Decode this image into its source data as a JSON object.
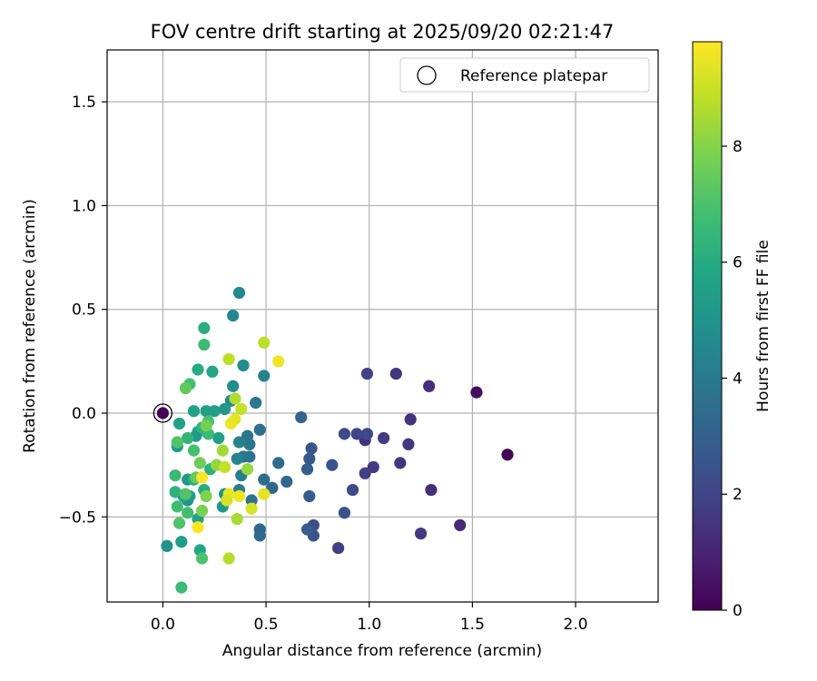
{
  "chart_data": {
    "type": "scatter",
    "title": "FOV centre drift starting at 2025/09/20 02:21:47",
    "xlabel": "Angular distance from reference (arcmin)",
    "ylabel": "Rotation from reference (arcmin)",
    "xlim": [
      -0.27,
      2.4
    ],
    "ylim": [
      -0.91,
      1.75
    ],
    "xticks": [
      0.0,
      0.5,
      1.0,
      1.5,
      2.0
    ],
    "xtick_labels": [
      "0.0",
      "0.5",
      "1.0",
      "1.5",
      "2.0"
    ],
    "yticks": [
      -0.5,
      0.0,
      0.5,
      1.0,
      1.5
    ],
    "ytick_labels": [
      "−0.5",
      "0.0",
      "0.5",
      "1.0",
      "1.5"
    ],
    "grid": true,
    "legend": {
      "position": "top-right",
      "label": "Reference platepar"
    },
    "reference_point": {
      "x": 0.0,
      "y": 0.0,
      "hours": 0.0
    },
    "colorbar": {
      "label": "Hours from first FF file",
      "range": [
        0,
        9.8
      ],
      "ticks": [
        0,
        2,
        4,
        6,
        8
      ],
      "tick_labels": [
        "0",
        "2",
        "4",
        "6",
        "8"
      ],
      "colormap": "viridis"
    },
    "points": [
      {
        "x": 1.67,
        "y": -0.2,
        "h": 0.1
      },
      {
        "x": 1.52,
        "y": 0.1,
        "h": 0.3
      },
      {
        "x": 1.29,
        "y": 0.13,
        "h": 1.3
      },
      {
        "x": 1.13,
        "y": 0.19,
        "h": 1.5
      },
      {
        "x": 0.99,
        "y": 0.19,
        "h": 1.9
      },
      {
        "x": 1.2,
        "y": -0.03,
        "h": 1.4
      },
      {
        "x": 1.44,
        "y": -0.54,
        "h": 1.2
      },
      {
        "x": 1.3,
        "y": -0.37,
        "h": 1.3
      },
      {
        "x": 1.25,
        "y": -0.58,
        "h": 1.6
      },
      {
        "x": 1.19,
        "y": -0.15,
        "h": 1.6
      },
      {
        "x": 1.15,
        "y": -0.24,
        "h": 1.5
      },
      {
        "x": 1.07,
        "y": -0.12,
        "h": 1.7
      },
      {
        "x": 1.02,
        "y": -0.26,
        "h": 1.6
      },
      {
        "x": 0.98,
        "y": -0.29,
        "h": 1.8
      },
      {
        "x": 0.98,
        "y": -0.13,
        "h": 1.4
      },
      {
        "x": 0.99,
        "y": -0.1,
        "h": 2.1
      },
      {
        "x": 0.94,
        "y": -0.1,
        "h": 2.0
      },
      {
        "x": 0.88,
        "y": -0.1,
        "h": 2.2
      },
      {
        "x": 0.92,
        "y": -0.37,
        "h": 2.2
      },
      {
        "x": 0.88,
        "y": -0.48,
        "h": 2.4
      },
      {
        "x": 0.85,
        "y": -0.65,
        "h": 1.8
      },
      {
        "x": 0.82,
        "y": -0.25,
        "h": 2.5
      },
      {
        "x": 0.73,
        "y": -0.54,
        "h": 2.3
      },
      {
        "x": 0.73,
        "y": -0.59,
        "h": 2.5
      },
      {
        "x": 0.72,
        "y": -0.17,
        "h": 2.6
      },
      {
        "x": 0.71,
        "y": -0.22,
        "h": 2.7
      },
      {
        "x": 0.71,
        "y": -0.4,
        "h": 2.8
      },
      {
        "x": 0.7,
        "y": -0.56,
        "h": 2.8
      },
      {
        "x": 0.7,
        "y": -0.27,
        "h": 2.9
      },
      {
        "x": 0.67,
        "y": -0.02,
        "h": 3.0
      },
      {
        "x": 0.6,
        "y": -0.33,
        "h": 3.2
      },
      {
        "x": 0.56,
        "y": -0.24,
        "h": 3.4
      },
      {
        "x": 0.53,
        "y": -0.36,
        "h": 3.3
      },
      {
        "x": 0.49,
        "y": -0.32,
        "h": 3.5
      },
      {
        "x": 0.47,
        "y": -0.56,
        "h": 3.2
      },
      {
        "x": 0.47,
        "y": -0.59,
        "h": 3.3
      },
      {
        "x": 0.47,
        "y": -0.08,
        "h": 3.6
      },
      {
        "x": 0.45,
        "y": 0.05,
        "h": 3.9
      },
      {
        "x": 0.49,
        "y": 0.18,
        "h": 4.3
      },
      {
        "x": 0.43,
        "y": -0.42,
        "h": 3.6
      },
      {
        "x": 0.42,
        "y": -0.21,
        "h": 3.7
      },
      {
        "x": 0.41,
        "y": -0.11,
        "h": 3.8
      },
      {
        "x": 0.42,
        "y": -0.15,
        "h": 3.9
      },
      {
        "x": 0.39,
        "y": -0.21,
        "h": 3.8
      },
      {
        "x": 0.38,
        "y": -0.3,
        "h": 4.2
      },
      {
        "x": 0.37,
        "y": -0.14,
        "h": 4.3
      },
      {
        "x": 0.37,
        "y": -0.37,
        "h": 4.1
      },
      {
        "x": 0.36,
        "y": -0.22,
        "h": 4.4
      },
      {
        "x": 0.37,
        "y": 0.58,
        "h": 4.6
      },
      {
        "x": 0.34,
        "y": 0.47,
        "h": 4.5
      },
      {
        "x": 0.39,
        "y": 0.23,
        "h": 4.7
      },
      {
        "x": 0.34,
        "y": 0.13,
        "h": 4.8
      },
      {
        "x": 0.33,
        "y": 0.06,
        "h": 4.6
      },
      {
        "x": 0.3,
        "y": 0.02,
        "h": 5.1
      },
      {
        "x": 0.3,
        "y": -0.39,
        "h": 5.0
      },
      {
        "x": 0.29,
        "y": -0.45,
        "h": 5.2
      },
      {
        "x": 0.27,
        "y": -0.12,
        "h": 5.5
      },
      {
        "x": 0.25,
        "y": 0.01,
        "h": 5.4
      },
      {
        "x": 0.24,
        "y": 0.2,
        "h": 5.7
      },
      {
        "x": 0.2,
        "y": 0.41,
        "h": 6.1
      },
      {
        "x": 0.21,
        "y": 0.01,
        "h": 5.5
      },
      {
        "x": 0.17,
        "y": -0.09,
        "h": 5.8
      },
      {
        "x": 0.16,
        "y": -0.11,
        "h": 5.3
      },
      {
        "x": 0.15,
        "y": 0.01,
        "h": 5.6
      },
      {
        "x": 0.12,
        "y": -0.32,
        "h": 5.2
      },
      {
        "x": 0.12,
        "y": -0.42,
        "h": 5.0
      },
      {
        "x": 0.13,
        "y": -0.4,
        "h": 5.4
      },
      {
        "x": 0.08,
        "y": -0.05,
        "h": 5.6
      },
      {
        "x": 0.07,
        "y": -0.16,
        "h": 5.3
      },
      {
        "x": 0.02,
        "y": -0.64,
        "h": 5.0
      },
      {
        "x": 0.09,
        "y": -0.62,
        "h": 5.4
      },
      {
        "x": 0.18,
        "y": -0.66,
        "h": 5.8
      },
      {
        "x": 0.17,
        "y": -0.51,
        "h": 5.6
      },
      {
        "x": 0.1,
        "y": -0.4,
        "h": 5.6
      },
      {
        "x": 0.06,
        "y": -0.38,
        "h": 6.3
      },
      {
        "x": 0.17,
        "y": 0.21,
        "h": 6.0
      },
      {
        "x": 0.2,
        "y": -0.37,
        "h": 6.0
      },
      {
        "x": 0.15,
        "y": -0.32,
        "h": 6.0
      },
      {
        "x": 0.19,
        "y": -0.07,
        "h": 6.3
      },
      {
        "x": 0.23,
        "y": -0.27,
        "h": 6.2
      },
      {
        "x": 0.22,
        "y": -0.1,
        "h": 6.6
      },
      {
        "x": 0.22,
        "y": -0.04,
        "h": 6.9
      },
      {
        "x": 0.2,
        "y": 0.33,
        "h": 6.7
      },
      {
        "x": 0.13,
        "y": 0.14,
        "h": 6.8
      },
      {
        "x": 0.12,
        "y": -0.12,
        "h": 6.4
      },
      {
        "x": 0.15,
        "y": -0.18,
        "h": 6.9
      },
      {
        "x": 0.07,
        "y": -0.45,
        "h": 6.7
      },
      {
        "x": 0.06,
        "y": -0.3,
        "h": 6.6
      },
      {
        "x": 0.08,
        "y": -0.53,
        "h": 7.1
      },
      {
        "x": 0.12,
        "y": -0.48,
        "h": 6.8
      },
      {
        "x": 0.09,
        "y": -0.84,
        "h": 6.6
      },
      {
        "x": 0.19,
        "y": -0.7,
        "h": 7.0
      },
      {
        "x": 0.11,
        "y": -0.39,
        "h": 7.1
      },
      {
        "x": 0.07,
        "y": -0.14,
        "h": 7.1
      },
      {
        "x": 0.11,
        "y": 0.12,
        "h": 7.4
      },
      {
        "x": 0.16,
        "y": -0.31,
        "h": 7.5
      },
      {
        "x": 0.18,
        "y": -0.24,
        "h": 7.6
      },
      {
        "x": 0.19,
        "y": -0.47,
        "h": 7.8
      },
      {
        "x": 0.21,
        "y": -0.4,
        "h": 7.9
      },
      {
        "x": 0.21,
        "y": -0.06,
        "h": 7.7
      },
      {
        "x": 0.29,
        "y": -0.18,
        "h": 8.4
      },
      {
        "x": 0.26,
        "y": -0.25,
        "h": 8.2
      },
      {
        "x": 0.32,
        "y": 0.26,
        "h": 8.8
      },
      {
        "x": 0.35,
        "y": 0.07,
        "h": 8.6
      },
      {
        "x": 0.38,
        "y": 0.02,
        "h": 8.9
      },
      {
        "x": 0.3,
        "y": -0.26,
        "h": 8.9
      },
      {
        "x": 0.36,
        "y": -0.51,
        "h": 8.5
      },
      {
        "x": 0.41,
        "y": -0.27,
        "h": 8.3
      },
      {
        "x": 0.32,
        "y": -0.7,
        "h": 8.7
      },
      {
        "x": 0.43,
        "y": -0.46,
        "h": 9.2
      },
      {
        "x": 0.49,
        "y": 0.34,
        "h": 8.8
      },
      {
        "x": 0.56,
        "y": 0.25,
        "h": 9.6
      },
      {
        "x": 0.49,
        "y": -0.39,
        "h": 9.4
      },
      {
        "x": 0.35,
        "y": -0.03,
        "h": 9.4
      },
      {
        "x": 0.33,
        "y": -0.05,
        "h": 9.5
      },
      {
        "x": 0.32,
        "y": -0.39,
        "h": 9.5
      },
      {
        "x": 0.37,
        "y": -0.4,
        "h": 9.6
      },
      {
        "x": 0.31,
        "y": -0.42,
        "h": 9.2
      },
      {
        "x": 0.19,
        "y": -0.31,
        "h": 9.7
      },
      {
        "x": 0.17,
        "y": -0.55,
        "h": 9.8
      }
    ]
  }
}
